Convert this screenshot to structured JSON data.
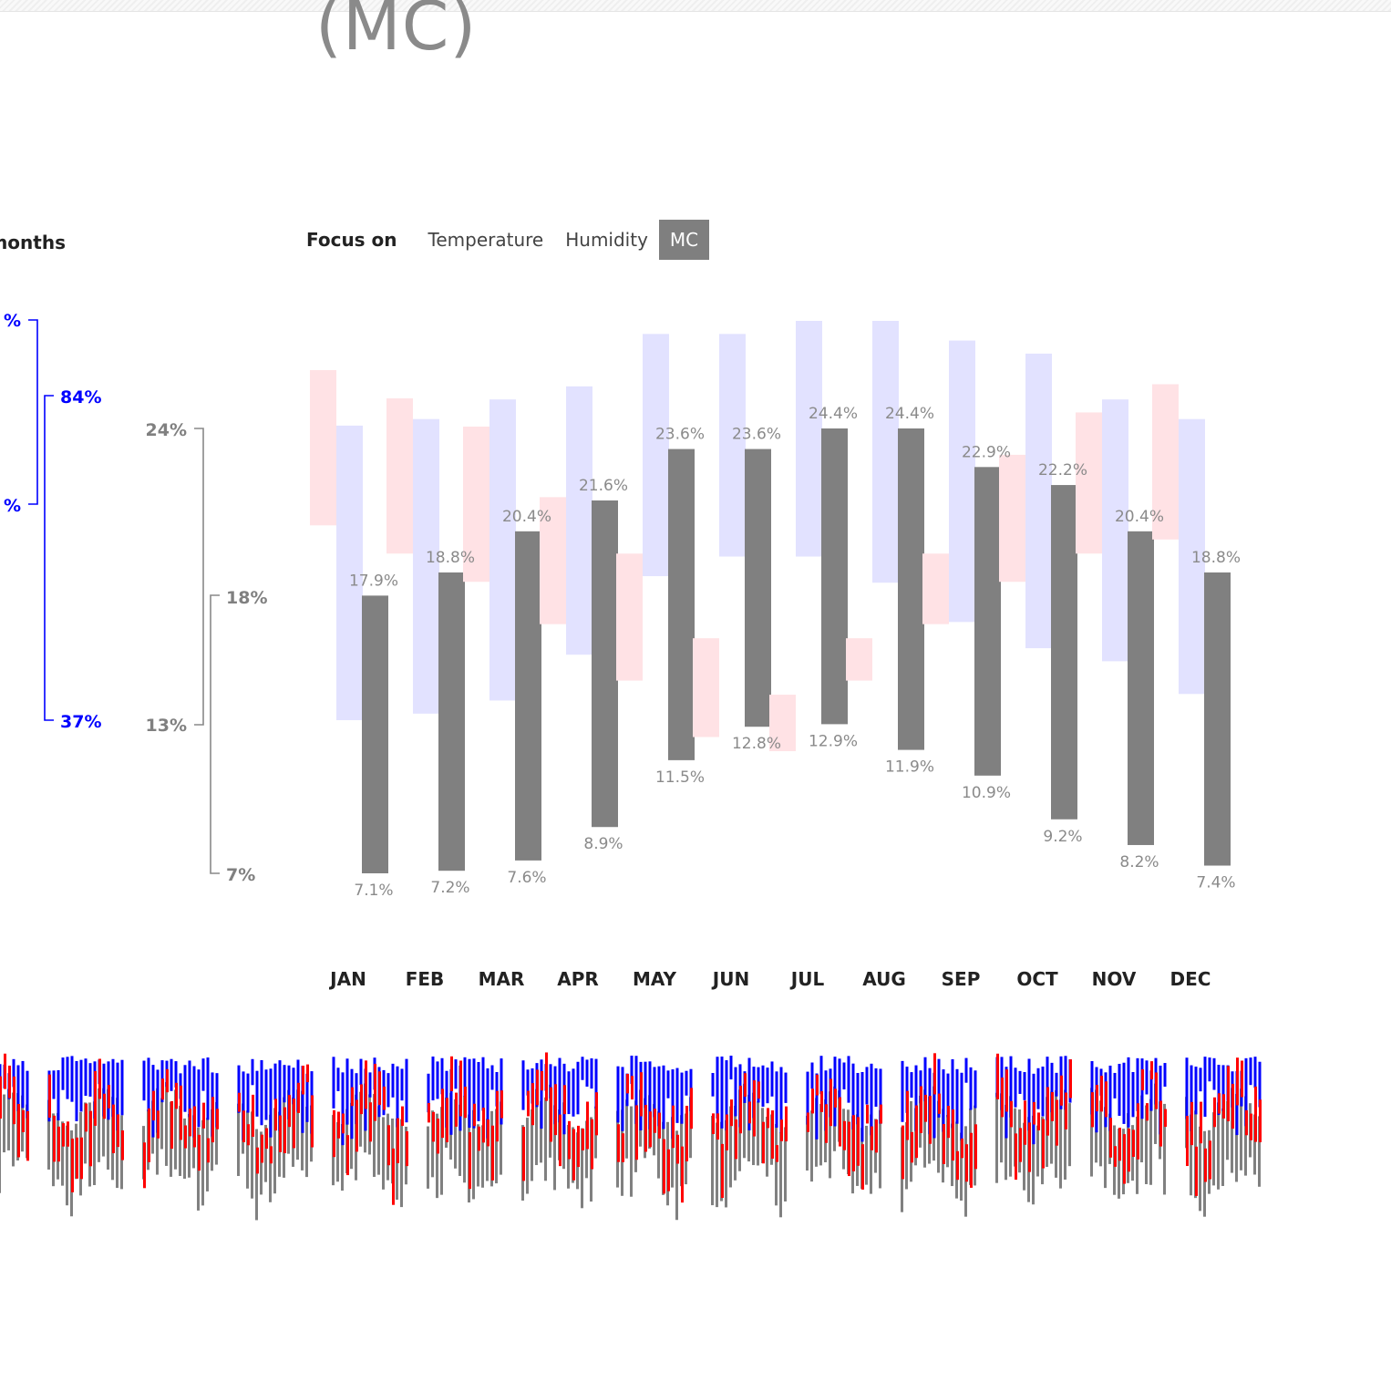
{
  "title": "(MC)",
  "months_heading": "months",
  "focus": {
    "label": "Focus on",
    "options": [
      "Temperature",
      "Humidity",
      "MC"
    ],
    "selected": "MC"
  },
  "colors": {
    "mc": "#808080",
    "humidity": "#0000ff",
    "humidity_bg": "#e2e2ff",
    "temperature": "#ff0000",
    "temperature_bg": "#ffe2e5",
    "muted_text": "#8a8a8a"
  },
  "scales": {
    "humidity_outer": {
      "top_label": "%",
      "bottom_label": "%"
    },
    "humidity_inner": {
      "top_label": "84%",
      "bottom_label": "37%"
    },
    "mc_outer": {
      "top_label": "24%",
      "bottom_label": "13%"
    },
    "mc_inner": {
      "top_label": "18%",
      "bottom_label": "7%"
    }
  },
  "chart_data": {
    "type": "bar",
    "title": "",
    "categories": [
      "JAN",
      "FEB",
      "MAR",
      "APR",
      "MAY",
      "JUN",
      "JUL",
      "AUG",
      "SEP",
      "OCT",
      "NOV",
      "DEC"
    ],
    "ylim": [
      7,
      24
    ],
    "series": [
      {
        "name": "MC",
        "max": [
          17.9,
          18.8,
          20.4,
          21.6,
          23.6,
          23.6,
          24.4,
          24.4,
          22.9,
          22.2,
          20.4,
          18.8
        ],
        "min": [
          7.1,
          7.2,
          7.6,
          8.9,
          11.5,
          12.8,
          12.9,
          11.9,
          10.9,
          9.2,
          8.2,
          7.4
        ],
        "max_labels": [
          "17.9%",
          "18.8%",
          "20.4%",
          "21.6%",
          "23.6%",
          "23.6%",
          "24.4%",
          "24.4%",
          "22.9%",
          "22.2%",
          "20.4%",
          "18.8%"
        ],
        "min_labels": [
          "7.1%",
          "7.2%",
          "7.6%",
          "8.9%",
          "11.5%",
          "12.8%",
          "12.9%",
          "11.9%",
          "10.9%",
          "9.2%",
          "8.2%",
          "7.4%"
        ]
      },
      {
        "name": "Humidity",
        "max": [
          82,
          83,
          86,
          88,
          96,
          96,
          98,
          98,
          95,
          93,
          86,
          83
        ],
        "min": [
          37,
          38,
          40,
          47,
          59,
          62,
          62,
          58,
          52,
          48,
          46,
          41
        ]
      },
      {
        "name": "Temperature",
        "max": [
          25,
          23,
          21,
          16,
          12,
          6,
          2,
          6,
          12,
          19,
          22,
          24
        ],
        "min": [
          14,
          12,
          10,
          7,
          3,
          -1,
          -2,
          3,
          7,
          10,
          12,
          13
        ]
      }
    ]
  }
}
